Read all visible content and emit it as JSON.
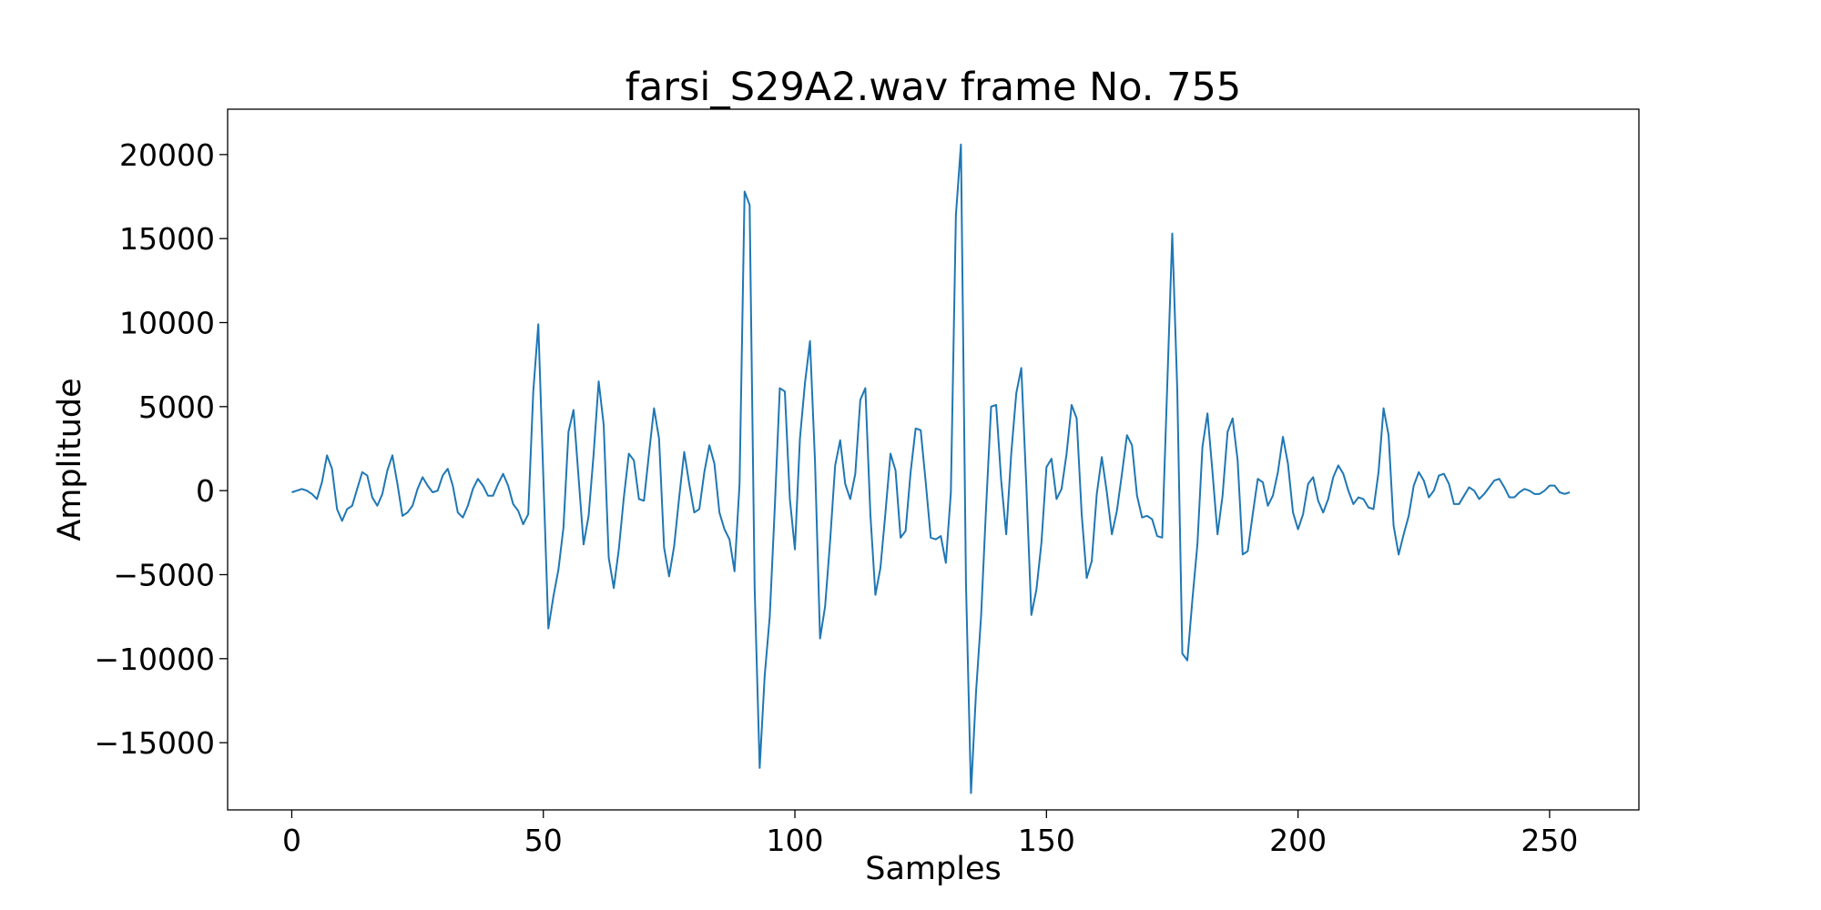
{
  "chart_data": {
    "type": "line",
    "title": "farsi_S29A2.wav frame No. 755",
    "xlabel": "Samples",
    "ylabel": "Amplitude",
    "xlim": [
      -12.75,
      267.75
    ],
    "ylim": [
      -19000,
      22700
    ],
    "xticks": [
      0,
      50,
      100,
      150,
      200,
      250
    ],
    "yticks": [
      -15000,
      -10000,
      -5000,
      0,
      5000,
      10000,
      15000,
      20000
    ],
    "xtick_labels": [
      "0",
      "50",
      "100",
      "150",
      "200",
      "250"
    ],
    "ytick_labels": [
      "−15000",
      "−10000",
      "−5000",
      "0",
      "5000",
      "10000",
      "15000",
      "20000"
    ],
    "grid": false,
    "line_color": "#1f77b4",
    "series": [
      {
        "values": [
          -100,
          0,
          100,
          0,
          -200,
          -500,
          500,
          2100,
          1300,
          -1100,
          -1800,
          -1100,
          -900,
          100,
          1100,
          900,
          -400,
          -900,
          -200,
          1200,
          2100,
          400,
          -1500,
          -1300,
          -900,
          100,
          800,
          300,
          -100,
          0,
          900,
          1300,
          300,
          -1300,
          -1600,
          -900,
          100,
          700,
          300,
          -300,
          -300,
          400,
          1000,
          300,
          -800,
          -1200,
          -2000,
          -1400,
          5900,
          9900,
          800,
          -8200,
          -6300,
          -4700,
          -2200,
          3500,
          4800,
          800,
          -3200,
          -1500,
          2200,
          6500,
          3900,
          -4000,
          -5800,
          -3500,
          -400,
          2200,
          1800,
          -500,
          -600,
          2200,
          4900,
          3100,
          -3400,
          -5100,
          -3300,
          -400,
          2300,
          400,
          -1300,
          -1100,
          1100,
          2700,
          1600,
          -1300,
          -2300,
          -2900,
          -4800,
          400,
          17800,
          17000,
          -5800,
          -16500,
          -11000,
          -7500,
          -1000,
          6100,
          5900,
          -500,
          -3500,
          3100,
          6400,
          8900,
          1700,
          -8800,
          -6900,
          -3000,
          1500,
          3000,
          400,
          -500,
          1000,
          5400,
          6100,
          -1400,
          -6200,
          -4600,
          -1300,
          2200,
          1200,
          -2800,
          -2400,
          1100,
          3700,
          3600,
          500,
          -2800,
          -2900,
          -2700,
          -4300,
          -100,
          16400,
          20600,
          -5500,
          -18000,
          -12000,
          -7500,
          -1000,
          5000,
          5100,
          600,
          -2600,
          2200,
          5800,
          7300,
          300,
          -7400,
          -5900,
          -3100,
          1400,
          1900,
          -500,
          100,
          2200,
          5100,
          4300,
          -1400,
          -5200,
          -4200,
          -200,
          2000,
          -100,
          -2600,
          -1200,
          1000,
          3300,
          2700,
          -300,
          -1600,
          -1500,
          -1700,
          -2700,
          -2800,
          6200,
          15300,
          6000,
          -9700,
          -10100,
          -6500,
          -3200,
          2600,
          4600,
          1100,
          -2600,
          -300,
          3500,
          4300,
          1800,
          -3800,
          -3600,
          -1400,
          700,
          500,
          -900,
          -300,
          1100,
          3200,
          1600,
          -1300,
          -2300,
          -1400,
          400,
          800,
          -600,
          -1300,
          -500,
          800,
          1500,
          1000,
          0,
          -800,
          -400,
          -500,
          -1000,
          -1100,
          1100,
          4900,
          3300,
          -2100,
          -3800,
          -2600,
          -1500,
          300,
          1100,
          600,
          -400,
          0,
          900,
          1000,
          400,
          -800,
          -800,
          -300,
          200,
          0,
          -500,
          -200,
          200,
          600,
          700,
          200,
          -400,
          -400,
          -100,
          100,
          0,
          -200,
          -200,
          0,
          300,
          300,
          -100,
          -200,
          -100
        ]
      }
    ]
  }
}
